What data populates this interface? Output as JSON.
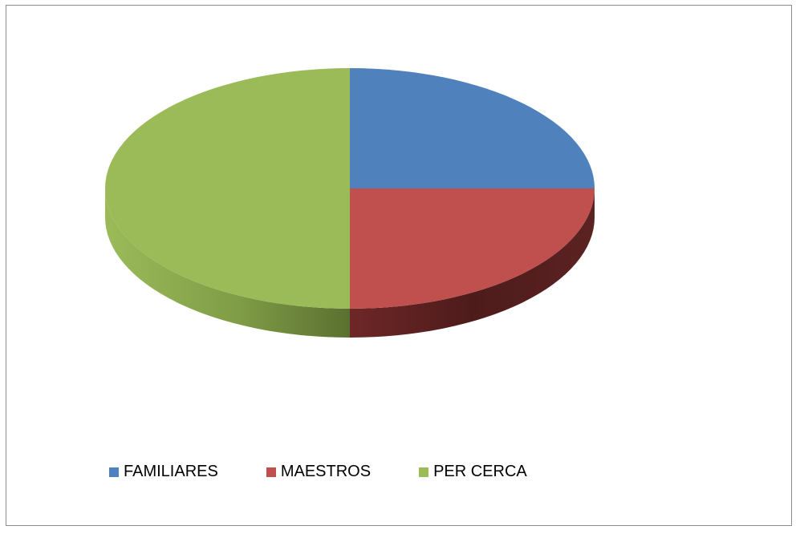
{
  "chart_data": {
    "type": "pie",
    "title": "",
    "three_d": true,
    "categories": [
      "FAMILIARES",
      "MAESTROS",
      "PER CERCA"
    ],
    "values": [
      25,
      25,
      50
    ],
    "colors": [
      "#4f81bd",
      "#c0504d",
      "#9bbb59"
    ],
    "side_colors": [
      "#385d8a",
      "#5a2020",
      "#6b8a3a"
    ],
    "legend_position": "bottom"
  }
}
